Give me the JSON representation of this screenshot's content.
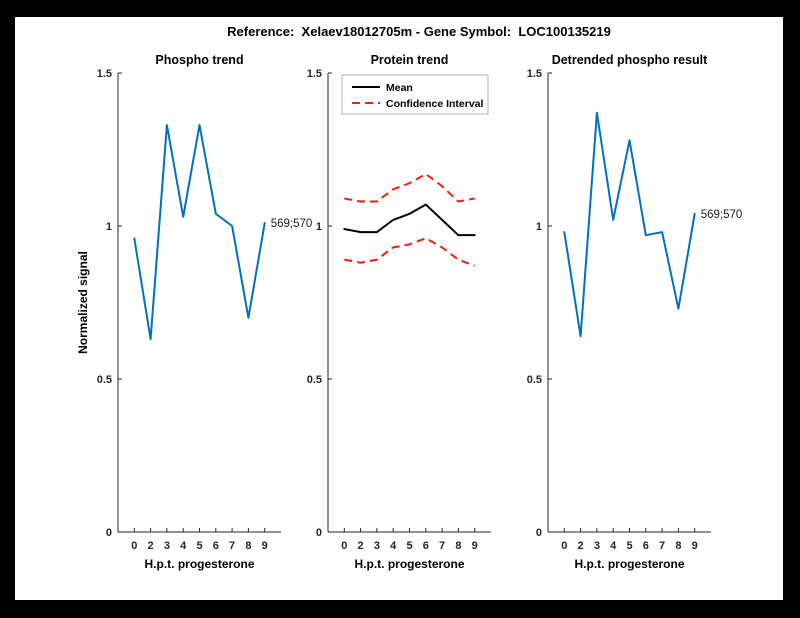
{
  "header": {
    "title": "Reference:  Xelaev18012705m - Gene Symbol:  LOC100135219"
  },
  "colors": {
    "frame_background": "#000000",
    "figure_background": "#ffffff",
    "axis": "#262626",
    "blue_line": "#0072BD",
    "mean_line": "#000000",
    "ci_line": "#f01e14",
    "legend_border": "#b0b0b0"
  },
  "axes_common": {
    "xlabel": "H.p.t. progesterone",
    "categories": [
      "0",
      "2",
      "3",
      "4",
      "5",
      "6",
      "7",
      "8",
      "9"
    ],
    "ytick_labels": [
      "0",
      "0.5",
      "1",
      "1.5"
    ],
    "ytick_values": [
      0,
      0.5,
      1,
      1.5
    ],
    "ylim": [
      0,
      1.5
    ]
  },
  "chart_data": [
    {
      "type": "line",
      "title": "Phospho trend",
      "xlabel": "H.p.t. progesterone",
      "ylabel": "Normalized signal",
      "categories": [
        "0",
        "2",
        "3",
        "4",
        "5",
        "6",
        "7",
        "8",
        "9"
      ],
      "ylim": [
        0,
        1.5
      ],
      "grid": false,
      "series": [
        {
          "name": "phospho-signal",
          "color_key": "blue_line",
          "dashed": false,
          "values": [
            0.96,
            0.63,
            1.33,
            1.03,
            1.33,
            1.04,
            1.0,
            0.7,
            1.01
          ]
        }
      ],
      "annotation": {
        "text": "569;570",
        "at_index": 8
      }
    },
    {
      "type": "line",
      "title": "Protein trend",
      "xlabel": "H.p.t. progesterone",
      "ylabel": "",
      "categories": [
        "0",
        "2",
        "3",
        "4",
        "5",
        "6",
        "7",
        "8",
        "9"
      ],
      "ylim": [
        0,
        1.5
      ],
      "grid": false,
      "series": [
        {
          "name": "ci-upper",
          "color_key": "ci_line",
          "dashed": true,
          "values": [
            1.09,
            1.08,
            1.08,
            1.12,
            1.14,
            1.17,
            1.13,
            1.08,
            1.09
          ]
        },
        {
          "name": "ci-lower",
          "color_key": "ci_line",
          "dashed": true,
          "values": [
            0.89,
            0.88,
            0.89,
            0.93,
            0.94,
            0.96,
            0.93,
            0.89,
            0.87
          ]
        },
        {
          "name": "mean",
          "color_key": "mean_line",
          "dashed": false,
          "values": [
            0.99,
            0.98,
            0.98,
            1.02,
            1.04,
            1.07,
            1.02,
            0.97,
            0.97
          ]
        }
      ],
      "legend": {
        "position": "top-left",
        "entries": [
          {
            "label": "Mean",
            "color_key": "mean_line",
            "dashed": false
          },
          {
            "label": "Confidence Interval",
            "color_key": "ci_line",
            "dashed": true
          }
        ]
      }
    },
    {
      "type": "line",
      "title": "Detrended phospho result",
      "xlabel": "H.p.t. progesterone",
      "ylabel": "",
      "categories": [
        "0",
        "2",
        "3",
        "4",
        "5",
        "6",
        "7",
        "8",
        "9"
      ],
      "ylim": [
        0,
        1.5
      ],
      "grid": false,
      "series": [
        {
          "name": "detrended-phospho",
          "color_key": "blue_line",
          "dashed": false,
          "values": [
            0.98,
            0.64,
            1.37,
            1.02,
            1.28,
            0.97,
            0.98,
            0.73,
            1.04
          ]
        }
      ],
      "annotation": {
        "text": "569;570",
        "at_index": 8
      }
    }
  ]
}
